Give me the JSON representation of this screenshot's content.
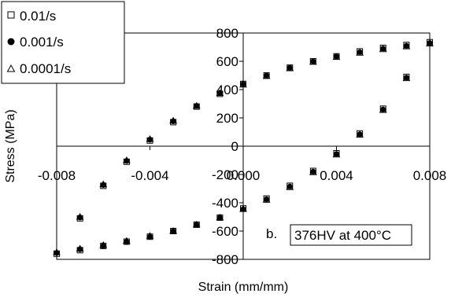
{
  "chart_data": {
    "type": "scatter",
    "xlabel": "Strain (mm/mm)",
    "ylabel": "Stress (MPa)",
    "xlim": [
      -0.008,
      0.008
    ],
    "ylim": [
      -800,
      800
    ],
    "x_ticks": [
      "-0.008",
      "-0.004",
      "0.000",
      "0.004",
      "0.008"
    ],
    "y_ticks": [
      "800",
      "600",
      "400",
      "200",
      "0",
      "-200",
      "-400",
      "-600",
      "-800"
    ],
    "legend_position": "top-left",
    "annotation_label": "b.",
    "annotation_box": "376HV at 400°C",
    "grid": false,
    "series": [
      {
        "name": "0.01/s",
        "marker": "open-square",
        "x": [
          -0.008,
          -0.007,
          -0.006,
          -0.005,
          -0.004,
          -0.003,
          -0.002,
          -0.001,
          0.0,
          0.001,
          0.002,
          0.003,
          0.004,
          0.005,
          0.006,
          0.007,
          0.008,
          0.007,
          0.006,
          0.005,
          0.004,
          0.003,
          0.002,
          0.001,
          0.0,
          -0.001,
          -0.002,
          -0.003,
          -0.004,
          -0.005,
          -0.006,
          -0.007
        ],
        "y": [
          -760,
          -510,
          -280,
          -110,
          40,
          170,
          280,
          370,
          440,
          500,
          555,
          600,
          635,
          670,
          695,
          715,
          735,
          490,
          265,
          90,
          -50,
          -175,
          -280,
          -370,
          -440,
          -505,
          -555,
          -600,
          -640,
          -675,
          -705,
          -735
        ]
      },
      {
        "name": "0.001/s",
        "marker": "filled-circle",
        "x": [
          -0.008,
          -0.007,
          -0.006,
          -0.005,
          -0.004,
          -0.003,
          -0.002,
          -0.001,
          0.0,
          0.001,
          0.002,
          0.003,
          0.004,
          0.005,
          0.006,
          0.007,
          0.008,
          0.007,
          0.006,
          0.005,
          0.004,
          0.003,
          0.002,
          0.001,
          0.0,
          -0.001,
          -0.002,
          -0.003,
          -0.004,
          -0.005,
          -0.006,
          -0.007
        ],
        "y": [
          -755,
          -505,
          -275,
          -105,
          45,
          175,
          285,
          375,
          440,
          500,
          555,
          600,
          635,
          665,
          690,
          710,
          730,
          485,
          260,
          85,
          -55,
          -180,
          -285,
          -375,
          -445,
          -505,
          -555,
          -600,
          -640,
          -675,
          -705,
          -730
        ]
      },
      {
        "name": "0.0001/s",
        "marker": "open-triangle",
        "x": [
          -0.008,
          -0.007,
          -0.006,
          -0.005,
          -0.004,
          -0.003,
          -0.002,
          -0.001,
          0.0,
          0.001,
          0.002,
          0.003,
          0.004,
          0.005,
          0.006,
          0.007,
          0.008,
          0.007,
          0.006,
          0.005,
          0.004,
          0.003,
          0.002,
          0.001,
          0.0,
          -0.001,
          -0.002,
          -0.003,
          -0.004,
          -0.005,
          -0.006,
          -0.007
        ],
        "y": [
          -750,
          -500,
          -270,
          -100,
          50,
          180,
          285,
          375,
          435,
          495,
          550,
          595,
          630,
          660,
          685,
          705,
          725,
          480,
          255,
          80,
          -60,
          -185,
          -290,
          -380,
          -445,
          -505,
          -555,
          -600,
          -635,
          -670,
          -700,
          -725
        ]
      }
    ]
  }
}
